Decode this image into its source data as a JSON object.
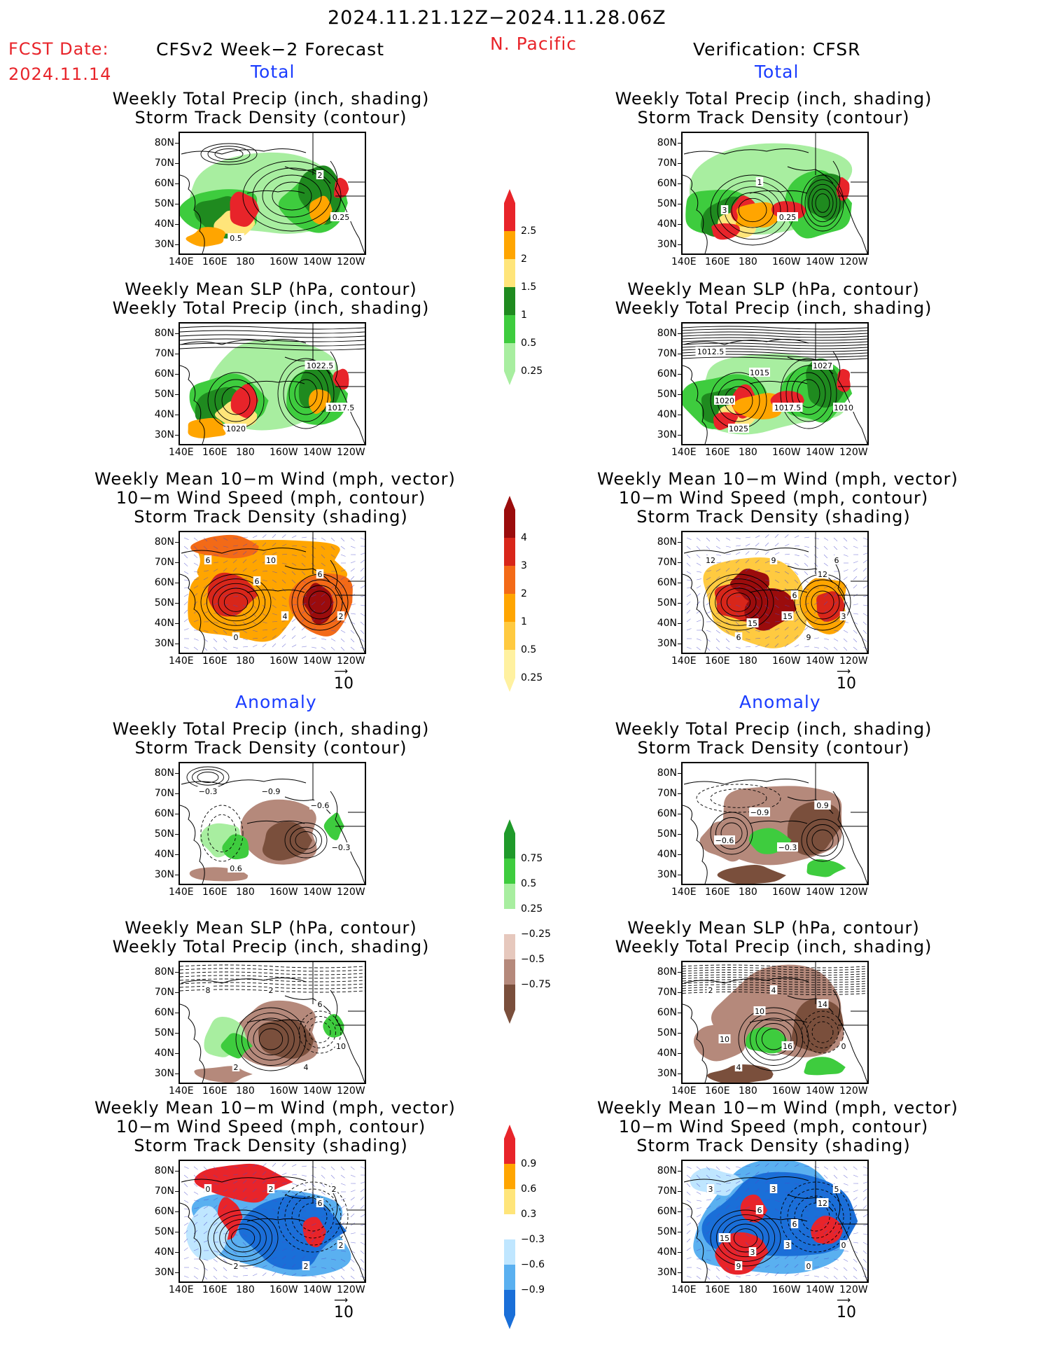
{
  "header": {
    "date_range": "2024.11.21.12Z−2024.11.28.06Z",
    "fcst_label": "FCST Date:",
    "fcst_date": "2024.11.14",
    "forecast_title": "CFSv2 Week−2 Forecast",
    "region": "N. Pacific",
    "verification_title": "Verification: CFSR"
  },
  "sections": {
    "total": "Total",
    "anomaly": "Anomaly"
  },
  "panel_titles": {
    "precip_storm": [
      "Weekly Total Precip (inch, shading)",
      "Storm Track Density (contour)"
    ],
    "slp_precip": [
      "Weekly Mean SLP (hPa, contour)",
      "Weekly Total Precip (inch, shading)"
    ],
    "wind_storm": [
      "Weekly Mean 10−m Wind (mph, vector)",
      "10−m Wind Speed (mph, contour)",
      "Storm Track Density (shading)"
    ]
  },
  "axes": {
    "lat_labels": [
      "80N",
      "70N",
      "60N",
      "50N",
      "40N",
      "30N"
    ],
    "lon_labels": [
      "140E",
      "160E",
      "180",
      "160W",
      "140W",
      "120W"
    ]
  },
  "vector_reference": "10",
  "colorbars": {
    "precip_total": {
      "labels": [
        "2.5",
        "2",
        "1.5",
        "1",
        "0.5",
        "0.25"
      ],
      "colors": [
        "#e8242a",
        "#ffa500",
        "#ffe57a",
        "#1f8a1f",
        "#3ecc3e",
        "#a8eea0"
      ]
    },
    "storm_total": {
      "labels": [
        "4",
        "3",
        "2",
        "1",
        "0.5",
        "0.25"
      ],
      "colors": [
        "#9b0c0c",
        "#d8261a",
        "#f36a17",
        "#ffa500",
        "#ffca40",
        "#fff1a0"
      ]
    },
    "precip_anom": {
      "labels": [
        "0.75",
        "0.5",
        "0.25",
        "−0.25",
        "−0.5",
        "−0.75"
      ],
      "colors": [
        "#1f9a2a",
        "#3ecc3e",
        "#a8eea0",
        "#ffffff",
        "#e6c8bd",
        "#b5897b",
        "#7a4f3c"
      ]
    },
    "storm_anom": {
      "labels": [
        "0.9",
        "0.6",
        "0.3",
        "−0.3",
        "−0.6",
        "−0.9"
      ],
      "colors": [
        "#e8242a",
        "#ffa500",
        "#ffe57a",
        "#ffffff",
        "#bfe6ff",
        "#5ab0f0",
        "#1a6fd8"
      ]
    }
  },
  "contour_labels": {
    "f_precip_total": [
      "2",
      "0.5",
      "0.25"
    ],
    "v_precip_total": [
      "3",
      "1",
      "0.25"
    ],
    "f_slp_total": [
      "1022.5",
      "1020",
      "1017.5"
    ],
    "v_slp_total": [
      "1020",
      "1015",
      "1017.5",
      "1027",
      "1025",
      "1010",
      "1012.5"
    ],
    "f_wind_total": [
      "6",
      "4",
      "6",
      "0",
      "2",
      "6",
      "10"
    ],
    "v_wind_total": [
      "15",
      "12",
      "6",
      "3",
      "12",
      "9",
      "9",
      "6",
      "15",
      "6"
    ],
    "f_precip_anom": [
      "−0.6",
      "0.6",
      "−0.3",
      "−0.3",
      "−0.9"
    ],
    "v_precip_anom": [
      "−0.6",
      "−0.9",
      "−0.3",
      "0.9"
    ],
    "f_slp_anom": [
      "6",
      "2",
      "10",
      "8",
      "2",
      "4"
    ],
    "v_slp_anom": [
      "10",
      "10",
      "16",
      "14",
      "4",
      "0",
      "2",
      "4"
    ],
    "f_wind_anom": [
      "6",
      "2",
      "2",
      "0",
      "2",
      "2",
      "2"
    ],
    "v_wind_anom": [
      "15",
      "6",
      "3",
      "12",
      "9",
      "0",
      "3",
      "3",
      "0",
      "5",
      "3",
      "6"
    ]
  }
}
